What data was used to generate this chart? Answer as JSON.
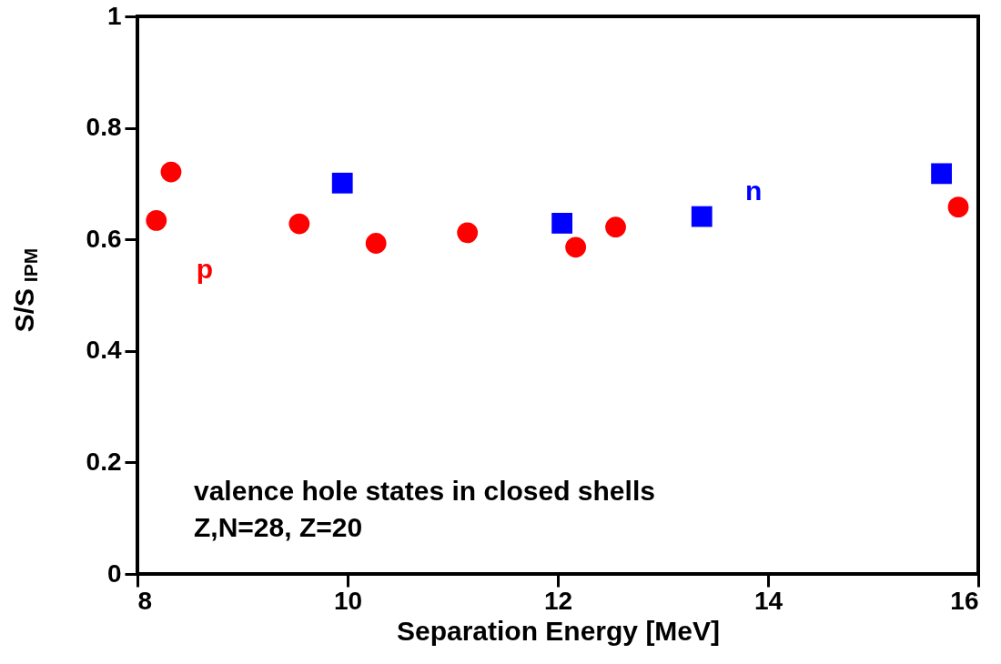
{
  "chart_data": {
    "type": "scatter",
    "xlabel": "Separation Energy [MeV]",
    "ylabel": "S/S$_{IPM}$",
    "xlim": [
      8,
      16
    ],
    "xticks": [
      8,
      10,
      12,
      14,
      16
    ],
    "ylim": [
      0,
      1
    ],
    "yticks": [
      0,
      0.2,
      0.4,
      0.6,
      0.8,
      1
    ],
    "grid": false,
    "legend": false,
    "series": [
      {
        "name": "p",
        "color": "#ff0000",
        "marker": "circle",
        "x": [
          8.18,
          8.32,
          9.54,
          10.27,
          11.14,
          12.17,
          12.55,
          15.81
        ],
        "values": [
          0.634,
          0.721,
          0.628,
          0.593,
          0.612,
          0.586,
          0.622,
          0.658
        ]
      },
      {
        "name": "n",
        "color": "#0000ff",
        "marker": "square",
        "x": [
          9.95,
          12.04,
          13.37,
          15.65
        ],
        "values": [
          0.701,
          0.629,
          0.641,
          0.718
        ]
      }
    ],
    "annotations": [
      "valence hole states in closed shells",
      "Z,N=28, Z=20"
    ]
  }
}
